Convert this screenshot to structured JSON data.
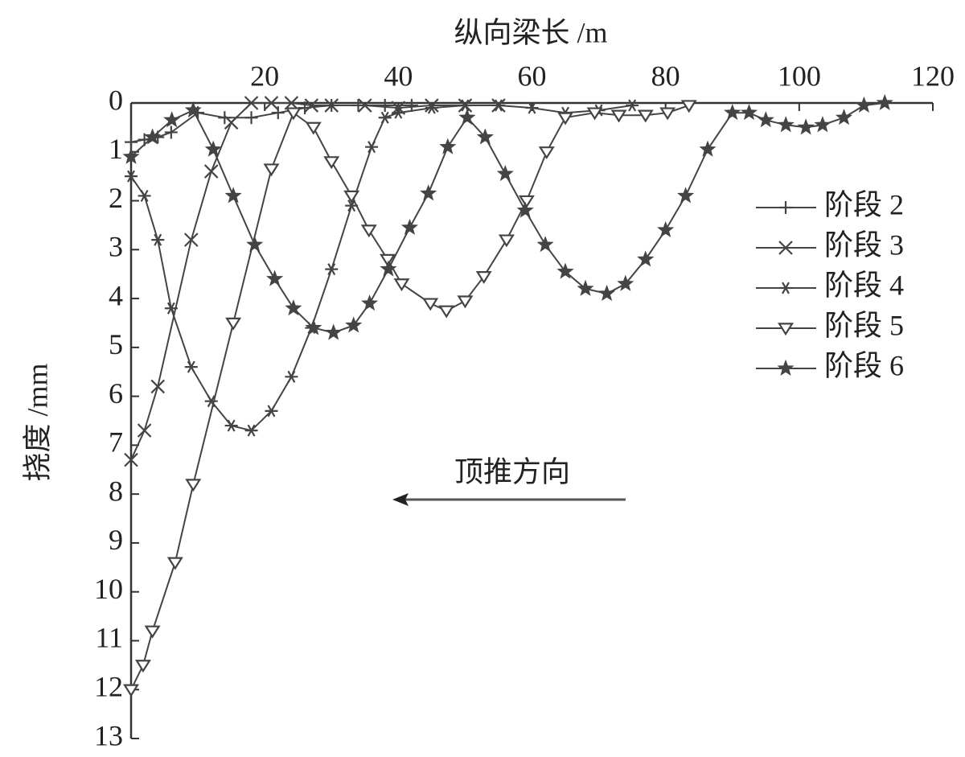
{
  "chart_data": {
    "type": "line",
    "x_label": "纵向梁长 /m",
    "y_label": "挠度 /mm",
    "annotation": "顶推方向",
    "xlim": [
      0,
      120
    ],
    "xticks": [
      20,
      40,
      60,
      80,
      100,
      120
    ],
    "ylim": [
      0,
      13
    ],
    "yticks": [
      0,
      1,
      2,
      3,
      4,
      5,
      6,
      7,
      8,
      9,
      10,
      11,
      12,
      13
    ],
    "y_inverted": true,
    "x_axis_top": true,
    "series": [
      {
        "name": "阶段 2",
        "color": "#444",
        "marker": "plus",
        "x": [
          0,
          2,
          4,
          6,
          10,
          14,
          18,
          22,
          26,
          30,
          34,
          38,
          42
        ],
        "values": [
          0.8,
          0.75,
          0.7,
          0.6,
          0.2,
          0.3,
          0.3,
          0.2,
          0.1,
          0.05,
          0.05,
          0.05,
          0.05
        ]
      },
      {
        "name": "阶段 3",
        "color": "#444",
        "marker": "cross",
        "x": [
          0,
          2,
          4,
          9,
          12,
          15,
          18,
          21,
          24,
          27,
          30,
          35,
          40,
          45,
          50,
          55
        ],
        "values": [
          7.3,
          6.7,
          5.8,
          2.8,
          1.4,
          0.4,
          0,
          0,
          0,
          0.05,
          0.05,
          0.05,
          0.1,
          0.05,
          0.05,
          0.05
        ]
      },
      {
        "name": "阶段 4",
        "color": "#444",
        "marker": "asterisk",
        "x": [
          0,
          2,
          4,
          6,
          9,
          12,
          15,
          18,
          21,
          24,
          27,
          30,
          33,
          36,
          38,
          40,
          45,
          50,
          55,
          60,
          65,
          70,
          75
        ],
        "values": [
          1.5,
          1.9,
          2.8,
          4.2,
          5.4,
          6.1,
          6.6,
          6.7,
          6.3,
          5.6,
          4.6,
          3.4,
          2.1,
          0.9,
          0.3,
          0.2,
          0.1,
          0.05,
          0.05,
          0.1,
          0.2,
          0.15,
          0.05
        ]
      },
      {
        "name": "阶段 5",
        "color": "#444",
        "marker": "triangle",
        "x": [
          0,
          1.8,
          3.2,
          6.6,
          9.3,
          15.3,
          21,
          24.3,
          27.3,
          30,
          33,
          35.6,
          38.4,
          40.5,
          44.8,
          47.2,
          50,
          52.8,
          56.2,
          59.2,
          62.2,
          65,
          69.4,
          73,
          77,
          80.3,
          83.5
        ],
        "values": [
          12,
          11.5,
          10.8,
          9.4,
          7.8,
          4.5,
          1.35,
          0.2,
          0.5,
          1.2,
          1.9,
          2.6,
          3.2,
          3.7,
          4.1,
          4.25,
          4.05,
          3.55,
          2.8,
          2.0,
          1.0,
          0.3,
          0.2,
          0.25,
          0.25,
          0.2,
          0.05
        ]
      },
      {
        "name": "阶段 6",
        "color": "#444",
        "marker": "star",
        "x": [
          0,
          3.2,
          6.1,
          9.3,
          12.3,
          15.3,
          18.5,
          21.5,
          24.3,
          27.3,
          30.3,
          33.3,
          35.7,
          38.5,
          41.7,
          44.5,
          47.4,
          50.3,
          53,
          56,
          59,
          62,
          65,
          68,
          71.2,
          74,
          77,
          80,
          83,
          86.3,
          90,
          92.5,
          95,
          98,
          101,
          103.5,
          106.7,
          109.7,
          112.8
        ],
        "values": [
          1.1,
          0.7,
          0.35,
          0.15,
          0.95,
          1.9,
          2.9,
          3.6,
          4.2,
          4.6,
          4.7,
          4.55,
          4.1,
          3.4,
          2.55,
          1.85,
          0.9,
          0.3,
          0.7,
          1.45,
          2.2,
          2.9,
          3.45,
          3.8,
          3.9,
          3.7,
          3.2,
          2.6,
          1.9,
          0.95,
          0.2,
          0.2,
          0.35,
          0.45,
          0.5,
          0.45,
          0.3,
          0.05,
          0
        ]
      }
    ]
  }
}
